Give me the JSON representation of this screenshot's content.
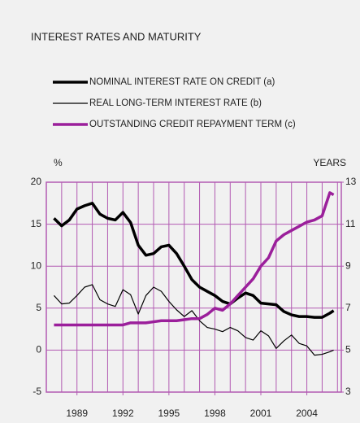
{
  "chart_data": {
    "type": "line",
    "title": "INTEREST RATES AND MATURITY",
    "y_label": "%",
    "y2_label": "YEARS",
    "x": [
      1987.5,
      1988,
      1988.5,
      1989,
      1989.5,
      1990,
      1990.5,
      1991,
      1991.5,
      1992,
      1992.5,
      1993,
      1993.5,
      1994,
      1994.5,
      1995,
      1995.5,
      1996,
      1996.5,
      1997,
      1997.5,
      1998,
      1998.5,
      1999,
      1999.5,
      2000,
      2000.5,
      2001,
      2001.5,
      2002,
      2002.5,
      2003,
      2003.5,
      2004,
      2004.5,
      2005,
      2005.5,
      2005.75
    ],
    "series": [
      {
        "name": "NOMINAL INTEREST RATE ON CREDIT (a)",
        "color": "#000000",
        "width": 3.5,
        "values": [
          15.7,
          14.8,
          15.5,
          16.8,
          17.2,
          17.5,
          16.2,
          15.7,
          15.5,
          16.4,
          15.2,
          12.5,
          11.3,
          11.5,
          12.3,
          12.5,
          11.5,
          10,
          8.4,
          7.5,
          7,
          6.5,
          5.8,
          5.5,
          6.2,
          6.8,
          6.5,
          5.6,
          5.5,
          5.4,
          4.6,
          4.2,
          4,
          4,
          3.9,
          3.9,
          4.4,
          4.7
        ]
      },
      {
        "name": "REAL LONG-TERM INTEREST RATE (b)",
        "color": "#000000",
        "width": 1.2,
        "values": [
          6.5,
          5.5,
          5.6,
          6.5,
          7.5,
          7.8,
          6,
          5.5,
          5.2,
          7.2,
          6.6,
          4.3,
          6.5,
          7.5,
          7,
          5.8,
          4.8,
          4,
          4.7,
          3.5,
          2.7,
          2.5,
          2.2,
          2.7,
          2.3,
          1.5,
          1.2,
          2.3,
          1.7,
          0.2,
          1.1,
          1.8,
          0.8,
          0.5,
          -0.6,
          -0.5,
          -0.2,
          0
        ]
      },
      {
        "name": "OUTSTANDING CREDIT REPAYMENT TERM (c)",
        "color": "#9b1f9b",
        "width": 3.5,
        "axis": "y2",
        "values": [
          6.2,
          6.2,
          6.2,
          6.2,
          6.2,
          6.2,
          6.2,
          6.2,
          6.2,
          6.2,
          6.3,
          6.3,
          6.3,
          6.35,
          6.4,
          6.4,
          6.4,
          6.45,
          6.5,
          6.5,
          6.7,
          7,
          6.9,
          7.2,
          7.6,
          8,
          8.4,
          9,
          9.4,
          10.2,
          10.5,
          10.7,
          10.9,
          11.1,
          11.2,
          11.4,
          12.5,
          12.4
        ]
      }
    ],
    "xlim": [
      1987,
      2006.25
    ],
    "xticks": [
      1989,
      1992,
      1995,
      1998,
      2001,
      2004
    ],
    "xgrid": [
      1988,
      1989,
      1990,
      1991,
      1992,
      1993,
      1994,
      1995,
      1996,
      1997,
      1998,
      1999,
      2000,
      2001,
      2002,
      2003,
      2004,
      2005,
      2006
    ],
    "ylim": [
      -5,
      20
    ],
    "yticks": [
      -5,
      0,
      5,
      10,
      15,
      20
    ],
    "y2lim": [
      3,
      13
    ],
    "y2ticks": [
      3,
      5,
      7,
      9,
      11,
      13
    ],
    "grid": true,
    "grid_color": "#b25ab2"
  }
}
